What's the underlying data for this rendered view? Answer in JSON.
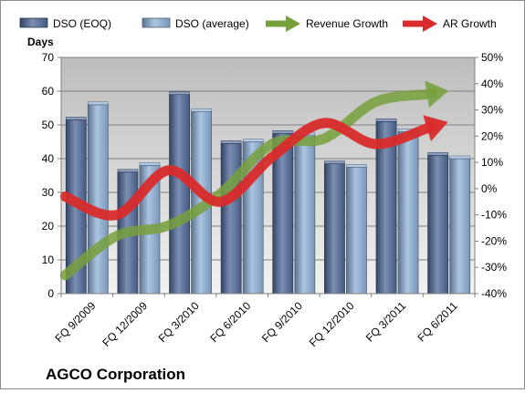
{
  "chart_data": {
    "type": "bar",
    "title": "AGCO Corporation",
    "ylabel": "Days",
    "categories": [
      "FQ 9/2009",
      "FQ 12/2009",
      "FQ 3/2010",
      "FQ 6/2010",
      "FQ 9/2010",
      "FQ 12/2010",
      "FQ 3/2011",
      "FQ 6/2011"
    ],
    "ylim": [
      0,
      70
    ],
    "y_ticks": [
      "0",
      "10",
      "20",
      "30",
      "40",
      "50",
      "60",
      "70"
    ],
    "y2lim": [
      -40,
      50
    ],
    "y2_ticks": [
      "-40%",
      "-30%",
      "-20%",
      "-10%",
      "0%",
      "10%",
      "20%",
      "30%",
      "40%",
      "50%"
    ],
    "legend_position": "top",
    "grid": true,
    "series": [
      {
        "name": "DSO (EOQ)",
        "kind": "bar",
        "axis": "left",
        "color": "#4f6a99",
        "values": [
          51.5,
          36,
          59,
          44.5,
          47.5,
          38.5,
          51,
          41
        ]
      },
      {
        "name": "DSO (average)",
        "kind": "bar",
        "axis": "left",
        "color": "#8fb1d9",
        "values": [
          56,
          38,
          54,
          45,
          47,
          37.5,
          48,
          40
        ]
      },
      {
        "name": "Revenue Growth",
        "kind": "line",
        "axis": "right",
        "color": "#77a03c",
        "values": [
          -33,
          -18,
          -14,
          -2,
          17,
          19,
          33,
          36
        ]
      },
      {
        "name": "AR Growth",
        "kind": "line",
        "axis": "right",
        "color": "#d92b2b",
        "values": [
          -3,
          -10,
          7,
          -5,
          12,
          25,
          17,
          23
        ]
      }
    ]
  }
}
